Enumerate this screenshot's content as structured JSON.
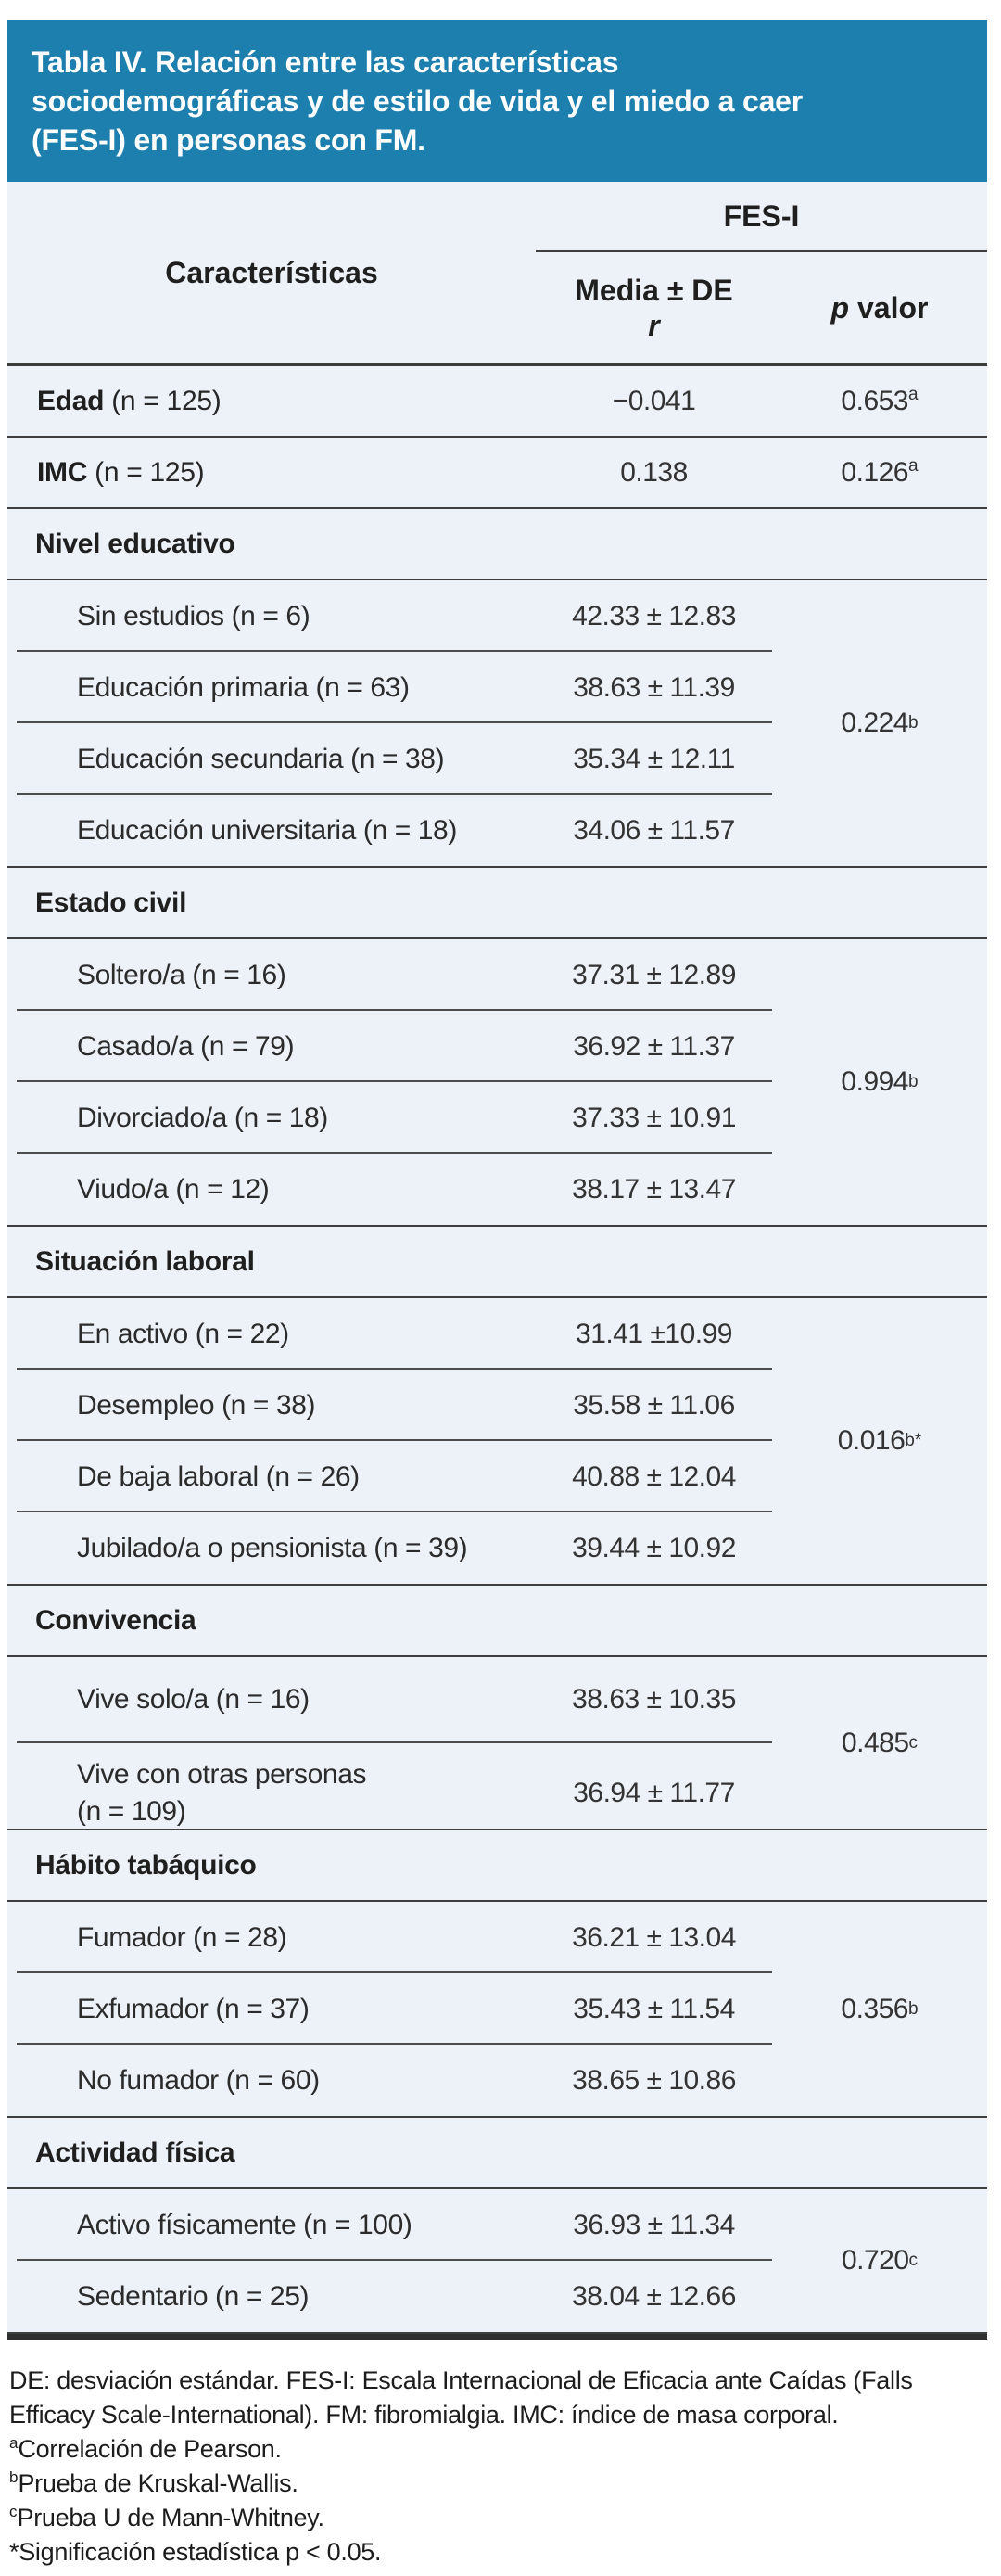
{
  "colors": {
    "header_bg": "#1d7fad",
    "panel_bg": "#edf1f8"
  },
  "title_lines": [
    "Tabla IV. Relación entre las características",
    "sociodemográficas y de estilo de vida y el miedo a caer",
    "(FES-I) en personas con FM."
  ],
  "header": {
    "characteristics": "Características",
    "group": "FES-I",
    "media_label": "Media ± DE",
    "media_sub": "r",
    "p_italic": "p",
    "p_rest": " valor"
  },
  "sections": [
    {
      "type": "simple",
      "bold": "Edad",
      "rest": " (n = 125)",
      "media": "−0.041",
      "p": "0.653",
      "p_sup": "a"
    },
    {
      "type": "simple",
      "bold": "IMC",
      "rest": " (n = 125)",
      "media": "0.138",
      "p": "0.126",
      "p_sup": "a"
    },
    {
      "type": "group",
      "header": "Nivel educativo",
      "p": "0.224",
      "p_sup": "b",
      "items": [
        {
          "label": "Sin estudios (n = 6)",
          "media": "42.33 ± 12.83"
        },
        {
          "label": "Educación primaria (n = 63)",
          "media": "38.63 ± 11.39"
        },
        {
          "label": "Educación secundaria (n = 38)",
          "media": "35.34 ± 12.11"
        },
        {
          "label": "Educación universitaria (n = 18)",
          "media": "34.06 ± 11.57"
        }
      ]
    },
    {
      "type": "group",
      "header": "Estado civil",
      "p": "0.994",
      "p_sup": "b",
      "items": [
        {
          "label": "Soltero/a (n = 16)",
          "media": "37.31 ± 12.89"
        },
        {
          "label": "Casado/a (n = 79)",
          "media": "36.92 ± 11.37"
        },
        {
          "label": "Divorciado/a (n = 18)",
          "media": "37.33 ± 10.91"
        },
        {
          "label": "Viudo/a (n = 12)",
          "media": "38.17 ± 13.47"
        }
      ]
    },
    {
      "type": "group",
      "header": "Situación laboral",
      "p": "0.016",
      "p_sup": "b*",
      "items": [
        {
          "label": "En activo (n = 22)",
          "media": "31.41 ±10.99"
        },
        {
          "label": "Desempleo (n = 38)",
          "media": "35.58 ± 11.06"
        },
        {
          "label": "De baja laboral (n = 26)",
          "media": "40.88 ± 12.04"
        },
        {
          "label": "Jubilado/a o pensionista (n = 39)",
          "media": "39.44 ± 10.92"
        }
      ]
    },
    {
      "type": "group",
      "header": "Convivencia",
      "p": "0.485",
      "p_sup": "c",
      "items": [
        {
          "label": "Vive solo/a (n = 16)",
          "media": "38.63 ± 10.35"
        },
        {
          "label": "Vive con otras personas\n(n = 109)",
          "media": "36.94 ± 11.77"
        }
      ]
    },
    {
      "type": "group",
      "header": "Hábito tabáquico",
      "p": "0.356",
      "p_sup": "b",
      "items": [
        {
          "label": "Fumador (n = 28)",
          "media": "36.21 ± 13.04"
        },
        {
          "label": "Exfumador (n = 37)",
          "media": "35.43 ± 11.54"
        },
        {
          "label": "No fumador (n = 60)",
          "media": "38.65 ± 10.86"
        }
      ]
    },
    {
      "type": "group",
      "header": "Actividad física",
      "p": "0.720",
      "p_sup": "c",
      "items": [
        {
          "label": "Activo físicamente (n = 100)",
          "media": "36.93 ± 11.34"
        },
        {
          "label": "Sedentario (n = 25)",
          "media": "38.04 ± 12.66"
        }
      ]
    }
  ],
  "footnotes": [
    {
      "sup": "",
      "text": "DE: desviación estándar. FES-I: Escala Internacional de Eficacia ante Caídas (Falls Efficacy Scale-International). FM: fibromialgia. IMC: índice de masa corporal."
    },
    {
      "sup": "a",
      "text": "Correlación de Pearson."
    },
    {
      "sup": "b",
      "text": "Prueba de Kruskal-Wallis."
    },
    {
      "sup": "c",
      "text": "Prueba U de Mann-Whitney."
    },
    {
      "sup": "",
      "text": "*Significación estadística p < 0.05."
    }
  ]
}
